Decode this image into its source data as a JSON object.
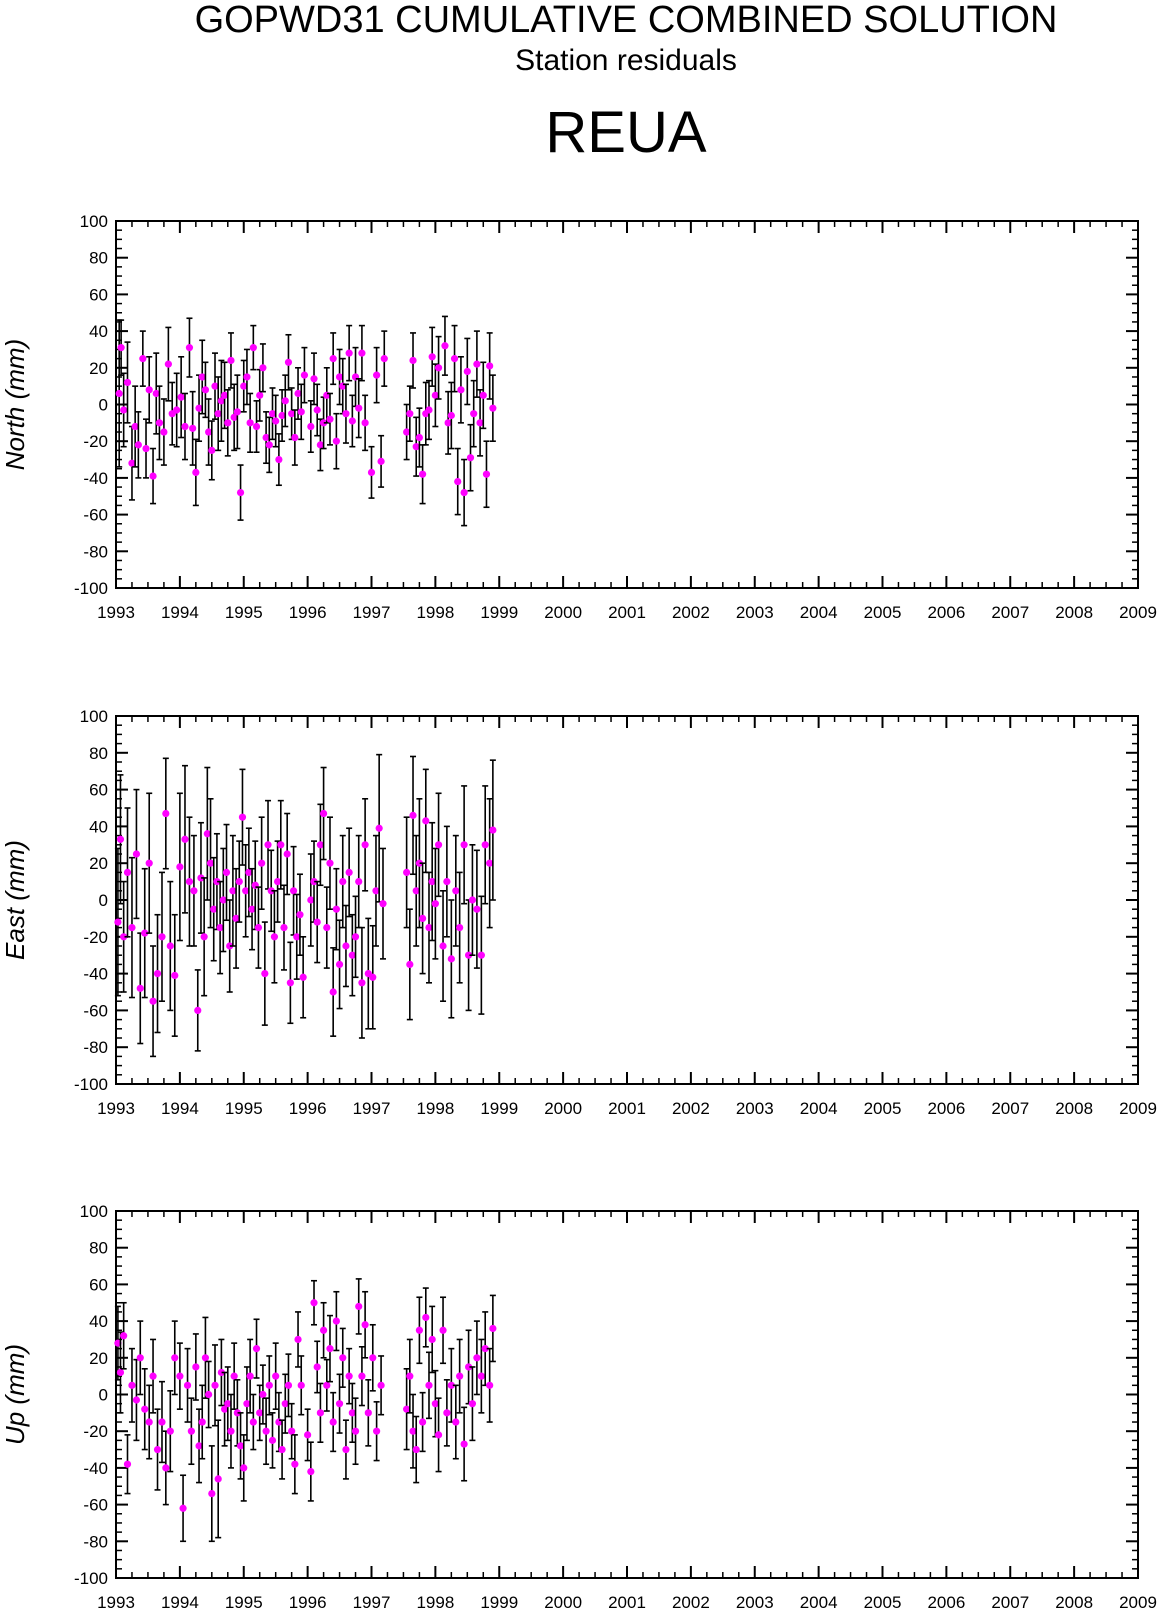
{
  "header": {
    "title": "GOPWD31 CUMULATIVE COMBINED SOLUTION",
    "subtitle": "Station residuals",
    "station": "REUA"
  },
  "colors": {
    "point": "#ff00ff",
    "errorbar": "#000000",
    "axis": "#000000"
  },
  "chart_data": [
    {
      "type": "scatter",
      "component": "north",
      "ylabel": "North (mm)",
      "xlim": [
        1993,
        2009
      ],
      "ylim": [
        -100,
        100
      ],
      "xticks": [
        1993,
        1994,
        1995,
        1996,
        1997,
        1998,
        1999,
        2000,
        2001,
        2002,
        2003,
        2004,
        2005,
        2006,
        2007,
        2008,
        2009
      ],
      "yticks": [
        -100,
        -80,
        -60,
        -40,
        -20,
        0,
        20,
        40,
        60,
        80,
        100
      ],
      "grid": false,
      "series": [
        {
          "x": [
            1993.05,
            1993.08,
            1993.12,
            1993.18,
            1993.25,
            1993.3,
            1993.35,
            1993.42,
            1993.47,
            1993.52,
            1993.58,
            1993.63,
            1993.68,
            1993.75,
            1993.82,
            1993.88,
            1993.95,
            1994.02,
            1994.08,
            1994.15,
            1994.2,
            1994.25,
            1994.3,
            1994.35,
            1994.4,
            1994.45,
            1994.5,
            1994.55,
            1994.6,
            1994.65,
            1994.7,
            1994.75,
            1994.8,
            1994.85,
            1994.9,
            1994.95,
            1995.0,
            1995.05,
            1995.1,
            1995.15,
            1995.2,
            1995.25,
            1995.3,
            1995.35,
            1995.4,
            1995.45,
            1995.5,
            1995.55,
            1995.6,
            1995.65,
            1995.7,
            1995.75,
            1995.8,
            1995.85,
            1995.9,
            1995.95,
            1996.05,
            1996.1,
            1996.15,
            1996.2,
            1996.25,
            1996.3,
            1996.35,
            1996.4,
            1996.45,
            1996.5,
            1996.55,
            1996.6,
            1996.65,
            1996.7,
            1996.75,
            1996.8,
            1996.85,
            1996.9,
            1997.0,
            1997.08,
            1997.15,
            1997.2,
            1997.55,
            1997.6,
            1997.65,
            1997.7,
            1997.75,
            1997.8,
            1997.85,
            1997.9,
            1997.95,
            1998.0,
            1998.05,
            1998.15,
            1998.2,
            1998.25,
            1998.3,
            1998.35,
            1998.4,
            1998.45,
            1998.5,
            1998.55,
            1998.6,
            1998.65,
            1998.7,
            1998.75,
            1998.8,
            1998.85,
            1998.9
          ],
          "y": [
            6,
            31,
            -3,
            12,
            -32,
            -12,
            -22,
            25,
            -24,
            8,
            -39,
            6,
            -10,
            -15,
            22,
            -5,
            -3,
            4,
            -12,
            31,
            -13,
            -37,
            -2,
            15,
            8,
            -15,
            -25,
            10,
            -5,
            2,
            5,
            -10,
            24,
            -7,
            -4,
            -48,
            10,
            15,
            -10,
            31,
            -12,
            5,
            20,
            -18,
            -22,
            -5,
            -9,
            -30,
            -6,
            2,
            23,
            -5,
            -18,
            6,
            -4,
            16,
            -12,
            14,
            -3,
            -22,
            -10,
            5,
            -8,
            25,
            -20,
            15,
            10,
            -5,
            28,
            -9,
            15,
            -2,
            28,
            -10,
            -37,
            16,
            -31,
            25,
            -15,
            -5,
            24,
            -23,
            -18,
            -38,
            -5,
            -3,
            26,
            5,
            20,
            32,
            -10,
            -6,
            25,
            -42,
            8,
            -48,
            18,
            -29,
            -5,
            22,
            -10,
            5,
            -38,
            21,
            -2
          ],
          "err": [
            40,
            15,
            20,
            22,
            20,
            22,
            18,
            15,
            16,
            18,
            15,
            22,
            20,
            18,
            20,
            17,
            20,
            22,
            18,
            16,
            20,
            18,
            18,
            20,
            15,
            18,
            16,
            18,
            20,
            22,
            18,
            18,
            15,
            18,
            20,
            15,
            14,
            15,
            16,
            12,
            14,
            14,
            13,
            14,
            15,
            14,
            14,
            14,
            14,
            14,
            15,
            14,
            15,
            14,
            15,
            15,
            14,
            14,
            14,
            14,
            14,
            15,
            14,
            14,
            15,
            15,
            15,
            16,
            15,
            14,
            16,
            16,
            15,
            15,
            14,
            15,
            14,
            15,
            15,
            15,
            15,
            16,
            16,
            16,
            17,
            16,
            16,
            17,
            17,
            16,
            17,
            18,
            18,
            18,
            18,
            18,
            18,
            18,
            18,
            18,
            18,
            18,
            18,
            18,
            18
          ]
        }
      ]
    },
    {
      "type": "scatter",
      "component": "east",
      "ylabel": "East (mm)",
      "xlim": [
        1993,
        2009
      ],
      "ylim": [
        -100,
        100
      ],
      "xticks": [
        1993,
        1994,
        1995,
        1996,
        1997,
        1998,
        1999,
        2000,
        2001,
        2002,
        2003,
        2004,
        2005,
        2006,
        2007,
        2008,
        2009
      ],
      "yticks": [
        -100,
        -80,
        -60,
        -40,
        -20,
        0,
        20,
        40,
        60,
        80,
        100
      ],
      "grid": false,
      "series": [
        {
          "x": [
            1993.03,
            1993.07,
            1993.12,
            1993.18,
            1993.25,
            1993.32,
            1993.38,
            1993.45,
            1993.52,
            1993.58,
            1993.65,
            1993.72,
            1993.78,
            1993.85,
            1993.92,
            1994.0,
            1994.08,
            1994.15,
            1994.22,
            1994.28,
            1994.33,
            1994.38,
            1994.43,
            1994.48,
            1994.53,
            1994.58,
            1994.63,
            1994.68,
            1994.73,
            1994.78,
            1994.83,
            1994.88,
            1994.93,
            1994.98,
            1995.03,
            1995.08,
            1995.13,
            1995.18,
            1995.23,
            1995.28,
            1995.33,
            1995.38,
            1995.43,
            1995.48,
            1995.53,
            1995.58,
            1995.63,
            1995.68,
            1995.73,
            1995.78,
            1995.83,
            1995.88,
            1995.93,
            1996.05,
            1996.1,
            1996.15,
            1996.2,
            1996.25,
            1996.3,
            1996.35,
            1996.4,
            1996.45,
            1996.5,
            1996.55,
            1996.6,
            1996.65,
            1996.7,
            1996.75,
            1996.8,
            1996.85,
            1996.9,
            1996.95,
            1997.02,
            1997.07,
            1997.12,
            1997.18,
            1997.55,
            1997.6,
            1997.65,
            1997.7,
            1997.75,
            1997.8,
            1997.85,
            1997.9,
            1997.95,
            1998.0,
            1998.05,
            1998.12,
            1998.18,
            1998.25,
            1998.32,
            1998.38,
            1998.45,
            1998.52,
            1998.58,
            1998.65,
            1998.72,
            1998.78,
            1998.85,
            1998.9
          ],
          "y": [
            -12,
            33,
            -20,
            15,
            -15,
            25,
            -48,
            -18,
            20,
            -55,
            -40,
            -20,
            47,
            -25,
            -41,
            18,
            33,
            10,
            5,
            -60,
            12,
            -20,
            36,
            20,
            -5,
            10,
            -15,
            0,
            15,
            -25,
            5,
            -10,
            10,
            45,
            5,
            15,
            -5,
            8,
            -15,
            20,
            -40,
            30,
            5,
            -20,
            10,
            30,
            -15,
            25,
            -45,
            5,
            -20,
            -8,
            -42,
            0,
            10,
            -12,
            30,
            47,
            -15,
            20,
            -50,
            -5,
            -35,
            10,
            -25,
            15,
            -30,
            -20,
            10,
            -45,
            30,
            -40,
            -42,
            5,
            39,
            -2,
            15,
            -35,
            46,
            5,
            20,
            -10,
            43,
            -15,
            10,
            -2,
            30,
            -25,
            10,
            -32,
            5,
            -15,
            30,
            -30,
            0,
            -5,
            -30,
            30,
            20,
            38
          ],
          "err": [
            40,
            35,
            30,
            35,
            38,
            35,
            30,
            35,
            38,
            30,
            32,
            35,
            30,
            35,
            33,
            40,
            40,
            35,
            30,
            22,
            30,
            32,
            36,
            35,
            28,
            26,
            25,
            28,
            26,
            25,
            30,
            27,
            22,
            26,
            25,
            24,
            22,
            24,
            22,
            25,
            28,
            24,
            22,
            25,
            22,
            24,
            23,
            22,
            22,
            24,
            23,
            22,
            22,
            25,
            22,
            22,
            22,
            25,
            22,
            25,
            24,
            22,
            24,
            25,
            22,
            24,
            22,
            22,
            25,
            30,
            25,
            30,
            28,
            30,
            40,
            30,
            30,
            30,
            32,
            30,
            35,
            30,
            28,
            30,
            32,
            30,
            28,
            30,
            30,
            32,
            30,
            30,
            32,
            30,
            30,
            32,
            32,
            32,
            35,
            38
          ]
        }
      ]
    },
    {
      "type": "scatter",
      "component": "up",
      "ylabel": "Up (mm)",
      "xlim": [
        1993,
        2009
      ],
      "ylim": [
        -100,
        100
      ],
      "xticks": [
        1993,
        1994,
        1995,
        1996,
        1997,
        1998,
        1999,
        2000,
        2001,
        2002,
        2003,
        2004,
        2005,
        2006,
        2007,
        2008,
        2009
      ],
      "yticks": [
        -100,
        -80,
        -60,
        -40,
        -20,
        0,
        20,
        40,
        60,
        80,
        100
      ],
      "grid": false,
      "series": [
        {
          "x": [
            1993.03,
            1993.07,
            1993.12,
            1993.18,
            1993.25,
            1993.32,
            1993.38,
            1993.45,
            1993.52,
            1993.58,
            1993.65,
            1993.72,
            1993.78,
            1993.85,
            1993.92,
            1994.0,
            1994.05,
            1994.12,
            1994.18,
            1994.25,
            1994.3,
            1994.35,
            1994.4,
            1994.45,
            1994.5,
            1994.55,
            1994.6,
            1994.65,
            1994.7,
            1994.75,
            1994.8,
            1994.85,
            1994.9,
            1994.95,
            1995.0,
            1995.05,
            1995.1,
            1995.15,
            1995.2,
            1995.25,
            1995.3,
            1995.35,
            1995.4,
            1995.45,
            1995.5,
            1995.55,
            1995.6,
            1995.65,
            1995.7,
            1995.75,
            1995.8,
            1995.85,
            1995.9,
            1996.0,
            1996.05,
            1996.1,
            1996.15,
            1996.2,
            1996.25,
            1996.3,
            1996.35,
            1996.4,
            1996.45,
            1996.5,
            1996.55,
            1996.6,
            1996.65,
            1996.7,
            1996.75,
            1996.8,
            1996.85,
            1996.9,
            1996.95,
            1997.02,
            1997.08,
            1997.15,
            1997.55,
            1997.6,
            1997.65,
            1997.7,
            1997.75,
            1997.8,
            1997.85,
            1997.9,
            1997.95,
            1998.0,
            1998.05,
            1998.12,
            1998.18,
            1998.25,
            1998.32,
            1998.38,
            1998.45,
            1998.52,
            1998.58,
            1998.65,
            1998.72,
            1998.78,
            1998.85,
            1998.9
          ],
          "y": [
            28,
            12,
            32,
            -38,
            5,
            -3,
            20,
            -8,
            -15,
            10,
            -30,
            -15,
            -40,
            -20,
            20,
            10,
            -62,
            5,
            -20,
            15,
            -28,
            -15,
            20,
            0,
            -54,
            5,
            -46,
            12,
            -8,
            -5,
            -20,
            10,
            -10,
            -28,
            -40,
            -5,
            10,
            -15,
            25,
            -10,
            0,
            -20,
            5,
            -25,
            10,
            -15,
            -30,
            -5,
            5,
            -20,
            -38,
            30,
            5,
            -22,
            -42,
            50,
            15,
            -10,
            35,
            5,
            25,
            -15,
            40,
            -5,
            20,
            -30,
            10,
            -10,
            -20,
            48,
            10,
            38,
            -10,
            20,
            -20,
            5,
            -8,
            10,
            -20,
            -30,
            35,
            -15,
            42,
            5,
            30,
            -5,
            -22,
            35,
            -10,
            5,
            -15,
            10,
            -27,
            15,
            -5,
            20,
            10,
            25,
            5,
            36
          ],
          "err": [
            20,
            22,
            18,
            16,
            20,
            22,
            20,
            22,
            20,
            20,
            22,
            22,
            20,
            22,
            20,
            18,
            18,
            20,
            18,
            18,
            20,
            20,
            22,
            18,
            26,
            22,
            32,
            18,
            20,
            20,
            20,
            18,
            18,
            18,
            18,
            20,
            20,
            15,
            16,
            15,
            16,
            18,
            16,
            15,
            18,
            16,
            16,
            16,
            17,
            15,
            16,
            15,
            16,
            14,
            16,
            12,
            14,
            16,
            15,
            14,
            18,
            16,
            16,
            16,
            16,
            16,
            15,
            16,
            18,
            15,
            16,
            18,
            18,
            18,
            16,
            16,
            22,
            20,
            20,
            18,
            18,
            16,
            16,
            18,
            18,
            18,
            20,
            18,
            18,
            20,
            20,
            20,
            20,
            20,
            20,
            20,
            20,
            20,
            20,
            18
          ]
        }
      ]
    }
  ]
}
